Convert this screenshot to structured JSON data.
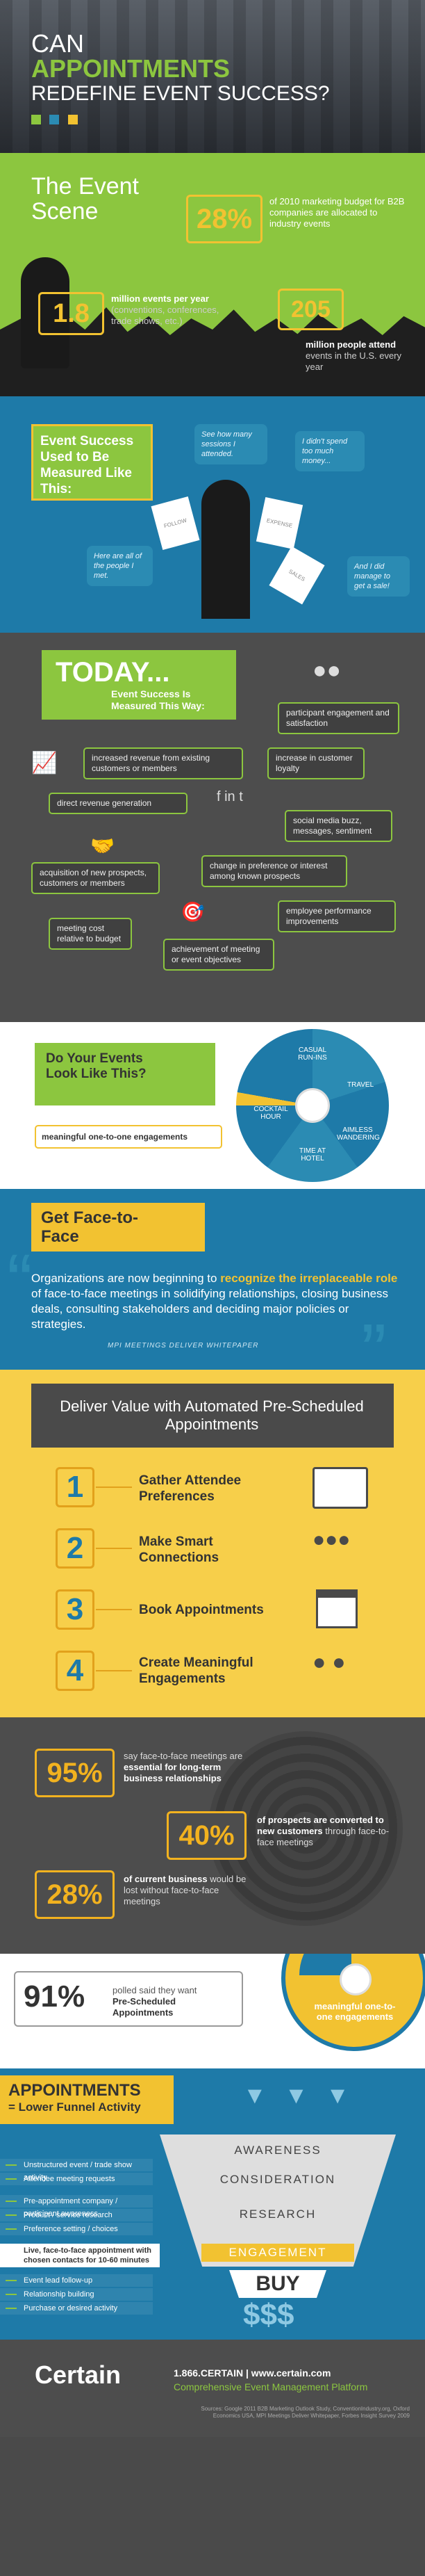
{
  "hero": {
    "line1": "CAN",
    "line2": "APPOINTMENTS",
    "line3": "REDEFINE EVENT SUCCESS?"
  },
  "scene": {
    "title": "The Event Scene",
    "stat_28_value": "28%",
    "stat_28_text": "of 2010 marketing budget for B2B companies are allocated to industry events",
    "stat_18_value": "1.8",
    "stat_18_text_bold": "million events per year",
    "stat_18_text": "(conventions, conferences, trade shows, etc.)",
    "stat_205_value": "205",
    "stat_205_text_bold": "million people attend",
    "stat_205_text": "events in the U.S. every year"
  },
  "measured": {
    "title": "Event Success Used to Be Measured Like This:",
    "q1": "See how many sessions I attended.",
    "q2": "I didn't spend too much money...",
    "q3": "Here are all of the people I met.",
    "q4": "And I did manage to get a sale!",
    "paper1": "FOLLOW",
    "paper2": "EXPENSE",
    "paper3": "SALES"
  },
  "today": {
    "title": "TODAY...",
    "subtitle": "Event Success Is Measured This Way:",
    "items": [
      "participant engagement and satisfaction",
      "increased revenue from existing customers or members",
      "increase in customer loyalty",
      "direct revenue generation",
      "social media buzz, messages, sentiment",
      "acquisition of new prospects, customers or members",
      "change in preference or interest among known prospects",
      "employee performance improvements",
      "meeting cost relative to budget",
      "achievement of meeting or event objectives"
    ]
  },
  "events_look": {
    "title": "Do Your Events Look Like This?",
    "label": "meaningful one-to-one engagements",
    "wheel": [
      "CASUAL RUN-INS",
      "TRAVEL",
      "AIMLESS WANDERING",
      "TIME AT HOTEL",
      "COCKTAIL HOUR"
    ]
  },
  "f2f": {
    "title": "Get Face-to-Face",
    "body_1": "Organizations are now beginning to ",
    "body_highlight": "recognize the irreplaceable role",
    "body_2": " of face-to-face meetings in solidifying relationships, closing business deals, consulting stakeholders and deciding major policies or strategies.",
    "source": "MPI MEETINGS DELIVER WHITEPAPER"
  },
  "deliver": {
    "title": "Deliver Value with Automated Pre-Scheduled Appointments",
    "steps": [
      {
        "num": "1",
        "label": "Gather Attendee Preferences"
      },
      {
        "num": "2",
        "label": "Make Smart Connections"
      },
      {
        "num": "3",
        "label": "Book Appointments"
      },
      {
        "num": "4",
        "label": "Create Meaningful Engagements"
      }
    ]
  },
  "stats": {
    "s95_value": "95%",
    "s95_pre": "say face-to-face meetings are",
    "s95_bold": "essential for long-term business relationships",
    "s40_value": "40%",
    "s40_pre": "of prospects are converted",
    "s40_bold": "to new customers",
    "s40_post": "through face-to-face meetings",
    "s28_value": "28%",
    "s28_bold": "of current business",
    "s28_post": "would be lost without face-to-face meetings"
  },
  "poll": {
    "value": "91%",
    "pre": "polled said they want",
    "bold": "Pre-Scheduled Appointments",
    "wheel_label": "meaningful one-to-one engagements"
  },
  "funnel": {
    "title1": "APPOINTMENTS",
    "title2": "= Lower Funnel Activity",
    "left_items": [
      "Unstructured event / trade show activity",
      "Attendee meeting requests",
      "Pre-appointment company / participant awareness",
      "Product / service research",
      "Preference setting / choices",
      "Live, face-to-face appointment with chosen contacts for 10-60 minutes",
      "Event lead follow-up",
      "Relationship building",
      "Purchase or desired activity"
    ],
    "levels": [
      "AWARENESS",
      "CONSIDERATION",
      "RESEARCH",
      "ENGAGEMENT",
      "BUY"
    ]
  },
  "footer": {
    "logo": "Certain",
    "contact": "1.866.CERTAIN | www.certain.com",
    "tagline": "Comprehensive Event Management Platform",
    "sources": "Sources: Google 2011 B2B Marketing Outlook Study, ConventionIndustry.org, Oxford Economics USA, MPI Meetings Deliver Whitepaper, Forbes Insight Survey 2009"
  },
  "colors": {
    "green": "#8cc63f",
    "blue": "#2b8bb3",
    "yellow": "#f2c231",
    "dark": "#4a4a4a"
  }
}
